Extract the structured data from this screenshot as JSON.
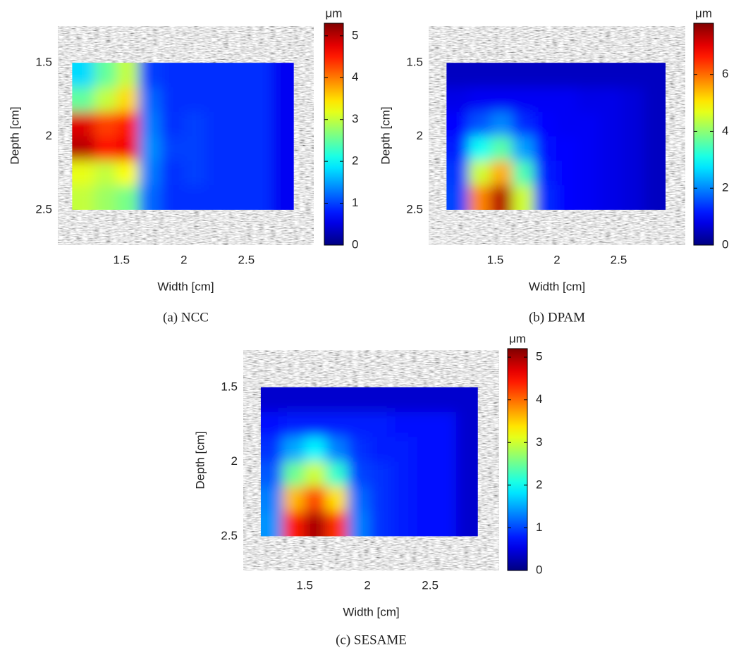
{
  "chart_data": [
    {
      "type": "heatmap",
      "caption": "(a) NCC",
      "xlabel": "Width [cm]",
      "ylabel": "Depth [cm]",
      "colorbar_label": "μm",
      "colormap": "jet",
      "xlim": [
        0.99,
        3.04
      ],
      "ylim": [
        1.25,
        2.74
      ],
      "y_reversed": true,
      "xticks": [
        1.5,
        2,
        2.5
      ],
      "yticks": [
        1.5,
        2,
        2.5
      ],
      "clim": [
        0,
        5.3
      ],
      "cticks": [
        0,
        1,
        2,
        3,
        4,
        5
      ],
      "x_range": [
        1.105,
        2.88
      ],
      "y_range": [
        1.5,
        2.5
      ],
      "values": [
        [
          1.8,
          2.5,
          3.0,
          1.0,
          0.9,
          0.9,
          0.9,
          0.9,
          0.9,
          0.6
        ],
        [
          2.5,
          3.0,
          3.5,
          1.2,
          0.9,
          0.9,
          0.9,
          0.9,
          0.9,
          0.6
        ],
        [
          4.8,
          4.3,
          4.5,
          1.3,
          0.9,
          1.0,
          0.9,
          0.9,
          0.9,
          0.6
        ],
        [
          5.0,
          4.6,
          4.7,
          1.4,
          1.0,
          1.0,
          0.9,
          0.9,
          0.9,
          0.6
        ],
        [
          3.2,
          3.0,
          3.3,
          1.3,
          0.9,
          1.0,
          0.9,
          0.9,
          0.9,
          0.6
        ],
        [
          3.0,
          2.8,
          2.6,
          1.2,
          0.9,
          0.9,
          0.9,
          0.9,
          0.9,
          0.6
        ]
      ]
    },
    {
      "type": "heatmap",
      "caption": "(b) DPAM",
      "xlabel": "Width [cm]",
      "ylabel": "Depth [cm]",
      "colorbar_label": "μm",
      "colormap": "jet",
      "xlim": [
        0.96,
        3.04
      ],
      "ylim": [
        1.25,
        2.74
      ],
      "y_reversed": true,
      "xticks": [
        1.5,
        2,
        2.5
      ],
      "yticks": [
        1.5,
        2,
        2.5
      ],
      "clim": [
        0,
        7.8
      ],
      "cticks": [
        0,
        2,
        4,
        6
      ],
      "x_range": [
        1.105,
        2.88
      ],
      "y_range": [
        1.5,
        2.5
      ],
      "values": [
        [
          0.5,
          0.5,
          0.5,
          0.5,
          0.5,
          0.5,
          0.5,
          0.5,
          0.5,
          0.5
        ],
        [
          0.8,
          0.9,
          0.9,
          0.9,
          0.9,
          0.9,
          0.8,
          0.8,
          0.7,
          0.5
        ],
        [
          1.0,
          1.6,
          2.0,
          1.3,
          1.0,
          0.9,
          0.9,
          0.8,
          0.7,
          0.5
        ],
        [
          1.2,
          3.0,
          3.6,
          2.2,
          1.1,
          1.0,
          0.9,
          0.8,
          0.7,
          0.5
        ],
        [
          1.4,
          4.5,
          5.5,
          3.5,
          1.2,
          1.0,
          0.9,
          0.8,
          0.7,
          0.5
        ],
        [
          1.5,
          5.8,
          7.4,
          4.5,
          1.3,
          1.0,
          0.9,
          0.8,
          0.7,
          0.5
        ]
      ]
    },
    {
      "type": "heatmap",
      "caption": "(c) SESAME",
      "xlabel": "Width [cm]",
      "ylabel": "Depth [cm]",
      "colorbar_label": "μm",
      "colormap": "jet",
      "xlim": [
        1.01,
        3.05
      ],
      "ylim": [
        1.25,
        2.73
      ],
      "y_reversed": true,
      "xticks": [
        1.5,
        2,
        2.5
      ],
      "yticks": [
        1.5,
        2,
        2.5
      ],
      "clim": [
        0,
        5.2
      ],
      "cticks": [
        0,
        1,
        2,
        3,
        4,
        5
      ],
      "x_range": [
        1.15,
        2.88
      ],
      "y_range": [
        1.5,
        2.5
      ],
      "values": [
        [
          0.4,
          0.4,
          0.4,
          0.4,
          0.4,
          0.4,
          0.4,
          0.4,
          0.4,
          0.4
        ],
        [
          0.7,
          0.8,
          0.8,
          0.8,
          0.8,
          0.8,
          0.7,
          0.7,
          0.7,
          0.4
        ],
        [
          0.9,
          1.5,
          1.9,
          1.3,
          0.9,
          0.8,
          0.8,
          0.7,
          0.7,
          0.4
        ],
        [
          1.1,
          2.5,
          3.0,
          2.2,
          1.0,
          0.9,
          0.8,
          0.7,
          0.7,
          0.4
        ],
        [
          1.3,
          3.6,
          4.2,
          3.4,
          1.2,
          0.9,
          0.8,
          0.7,
          0.7,
          0.4
        ],
        [
          1.4,
          4.4,
          5.0,
          4.3,
          1.3,
          0.9,
          0.8,
          0.7,
          0.7,
          0.4
        ]
      ]
    }
  ]
}
